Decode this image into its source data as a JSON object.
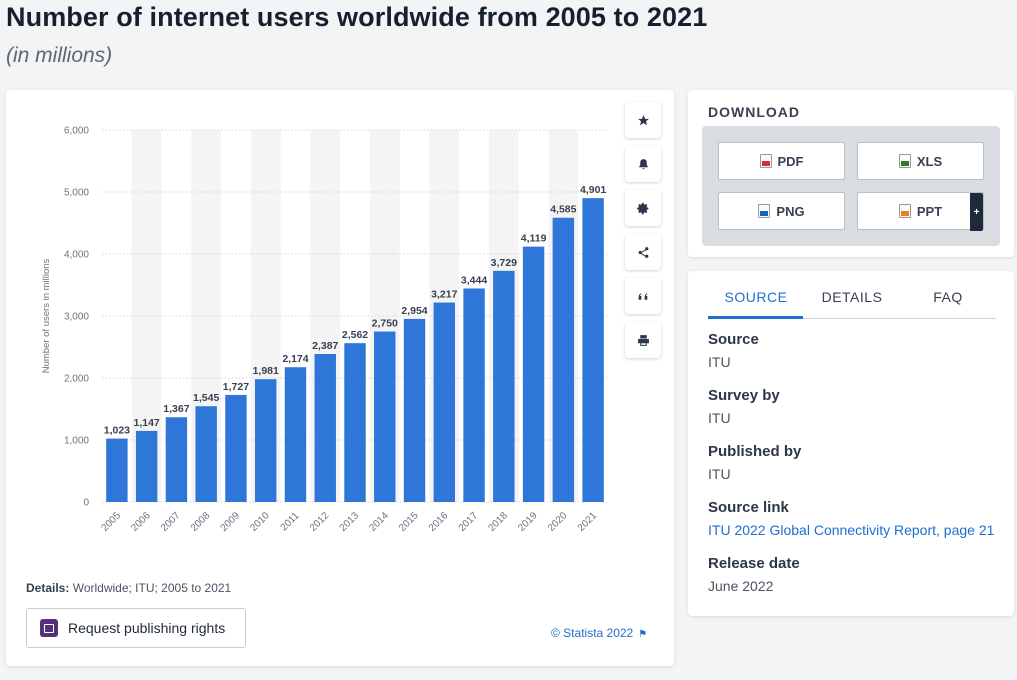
{
  "page": {
    "title": "Number of internet users worldwide from 2005 to 2021",
    "subtitle": "(in millions)"
  },
  "toolbar": {
    "icons": [
      "star-icon",
      "bell-icon",
      "gear-icon",
      "share-icon",
      "quote-icon",
      "print-icon"
    ]
  },
  "chart_data": {
    "type": "bar",
    "title": "Number of internet users worldwide from 2005 to 2021",
    "subtitle": "(in millions)",
    "categories": [
      "2005",
      "2006",
      "2007",
      "2008",
      "2009",
      "2010",
      "2011",
      "2012",
      "2013",
      "2014",
      "2015",
      "2016",
      "2017",
      "2018",
      "2019",
      "2020",
      "2021"
    ],
    "values": [
      1023,
      1147,
      1367,
      1545,
      1727,
      1981,
      2174,
      2387,
      2562,
      2750,
      2954,
      3217,
      3444,
      3729,
      4119,
      4585,
      4901
    ],
    "value_labels": [
      "1,023",
      "1,147",
      "1,367",
      "1,545",
      "1,727",
      "1,981",
      "2,174",
      "2,387",
      "2,562",
      "2,750",
      "2,954",
      "3,217",
      "3,444",
      "3,729",
      "4,119",
      "4,585",
      "4,901"
    ],
    "xlabel": "",
    "ylabel": "Number of users in millions",
    "ylim": [
      0,
      6000
    ],
    "yticks": [
      0,
      1000,
      2000,
      3000,
      4000,
      5000,
      6000
    ],
    "ytick_labels": [
      "0",
      "1,000",
      "2,000",
      "3,000",
      "4,000",
      "5,000",
      "6,000"
    ],
    "grid": true,
    "bar_color": "#2e77d9"
  },
  "details": {
    "label": "Details:",
    "text": "Worldwide; ITU; 2005 to 2021"
  },
  "publish_button": {
    "label": "Request publishing rights"
  },
  "copyright": {
    "text": "© Statista 2022"
  },
  "download": {
    "title": "DOWNLOAD",
    "buttons": [
      {
        "label": "PDF",
        "color": "#d32f2f"
      },
      {
        "label": "XLS",
        "color": "#2e7d32"
      },
      {
        "label": "PNG",
        "color": "#1565c0"
      },
      {
        "label": "PPT",
        "color": "#e67e22"
      }
    ],
    "plus": "+"
  },
  "info": {
    "tabs": [
      "SOURCE",
      "DETAILS",
      "FAQ"
    ],
    "active_tab": "SOURCE",
    "rows": [
      {
        "label": "Source",
        "value": "ITU"
      },
      {
        "label": "Survey by",
        "value": "ITU"
      },
      {
        "label": "Published by",
        "value": "ITU"
      },
      {
        "label": "Source link",
        "value": "ITU 2022 Global Connectivity Report, page 21"
      },
      {
        "label": "Release date",
        "value": "June 2022"
      }
    ]
  },
  "colors": {
    "accent": "#1f6fce",
    "bar": "#2e77d9",
    "publish_icon": "#56307a"
  }
}
